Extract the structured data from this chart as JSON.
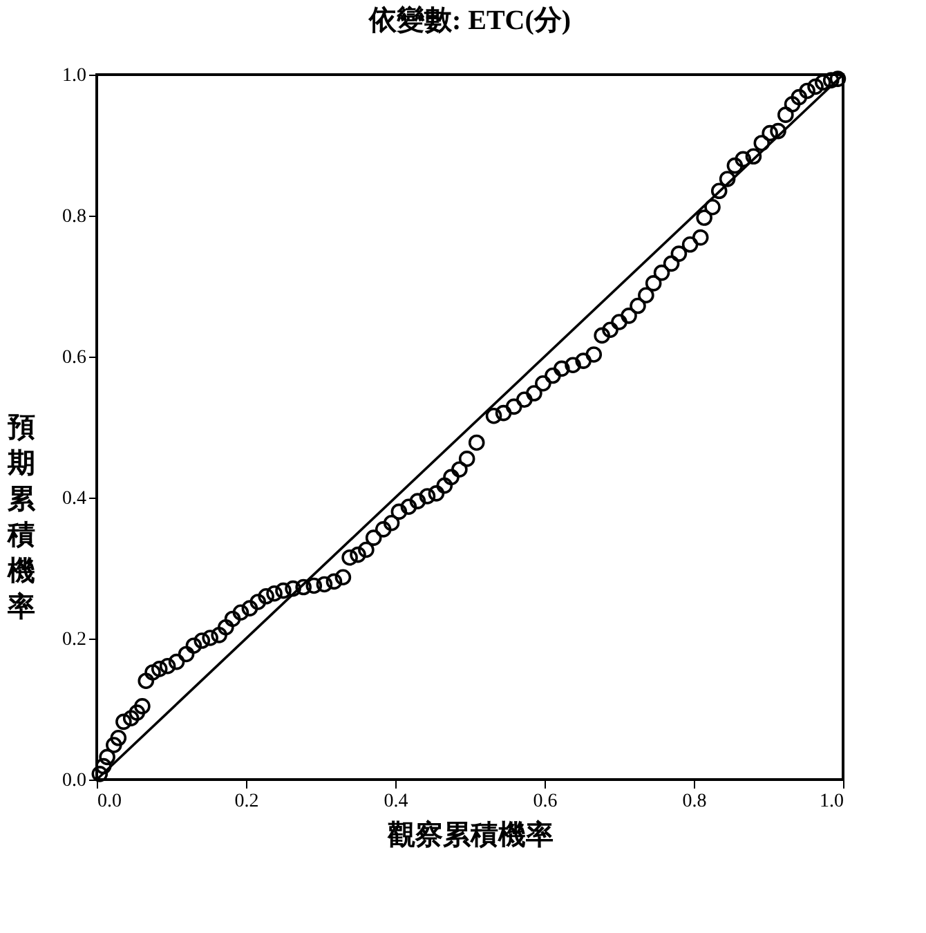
{
  "chart_data": {
    "type": "scatter",
    "title": "依變數: ETC(分)",
    "xlabel": "觀察累積機率",
    "ylabel": "預期累積機率",
    "marker": "circle",
    "xlim": [
      0,
      1
    ],
    "ylim": [
      0,
      1
    ],
    "xticks": [
      {
        "value": 0,
        "label": "0.0"
      },
      {
        "value": 0.2,
        "label": "0.2"
      },
      {
        "value": 0.4,
        "label": "0.4"
      },
      {
        "value": 0.6,
        "label": "0.6"
      },
      {
        "value": 0.8,
        "label": "0.8"
      },
      {
        "value": 1,
        "label": "1.0"
      }
    ],
    "yticks": [
      {
        "value": 0,
        "label": "0.0"
      },
      {
        "value": 0.2,
        "label": "0.2"
      },
      {
        "value": 0.4,
        "label": "0.4"
      },
      {
        "value": 0.6,
        "label": "0.6"
      },
      {
        "value": 0.8,
        "label": "0.8"
      },
      {
        "value": 1,
        "label": "1.0"
      }
    ],
    "series": [
      {
        "color": "#000000",
        "x": [
          0.004,
          0.009,
          0.014,
          0.023,
          0.029,
          0.036,
          0.046,
          0.054,
          0.061,
          0.066,
          0.075,
          0.084,
          0.095,
          0.107,
          0.12,
          0.13,
          0.141,
          0.152,
          0.164,
          0.173,
          0.182,
          0.193,
          0.205,
          0.216,
          0.227,
          0.238,
          0.25,
          0.263,
          0.277,
          0.291,
          0.305,
          0.318,
          0.33,
          0.339,
          0.35,
          0.361,
          0.371,
          0.384,
          0.395,
          0.405,
          0.418,
          0.43,
          0.443,
          0.455,
          0.466,
          0.475,
          0.486,
          0.496,
          0.509,
          0.532,
          0.545,
          0.559,
          0.573,
          0.586,
          0.598,
          0.611,
          0.623,
          0.638,
          0.652,
          0.666,
          0.677,
          0.688,
          0.7,
          0.713,
          0.725,
          0.736,
          0.746,
          0.757,
          0.77,
          0.78,
          0.795,
          0.809,
          0.814,
          0.825,
          0.834,
          0.845,
          0.855,
          0.866,
          0.88,
          0.891,
          0.902,
          0.913,
          0.923,
          0.932,
          0.941,
          0.952,
          0.963,
          0.973,
          0.984,
          0.993
        ],
        "values": [
          0.008,
          0.019,
          0.032,
          0.049,
          0.059,
          0.082,
          0.087,
          0.095,
          0.104,
          0.14,
          0.152,
          0.157,
          0.161,
          0.167,
          0.178,
          0.19,
          0.197,
          0.201,
          0.205,
          0.216,
          0.228,
          0.237,
          0.243,
          0.252,
          0.26,
          0.264,
          0.268,
          0.271,
          0.273,
          0.275,
          0.277,
          0.281,
          0.287,
          0.315,
          0.319,
          0.326,
          0.343,
          0.355,
          0.364,
          0.38,
          0.387,
          0.395,
          0.402,
          0.406,
          0.417,
          0.429,
          0.44,
          0.455,
          0.478,
          0.516,
          0.52,
          0.529,
          0.539,
          0.548,
          0.562,
          0.573,
          0.583,
          0.588,
          0.594,
          0.603,
          0.63,
          0.638,
          0.649,
          0.658,
          0.672,
          0.687,
          0.704,
          0.719,
          0.732,
          0.746,
          0.759,
          0.769,
          0.797,
          0.812,
          0.835,
          0.852,
          0.871,
          0.88,
          0.884,
          0.903,
          0.917,
          0.92,
          0.943,
          0.958,
          0.968,
          0.977,
          0.983,
          0.989,
          0.992,
          0.994
        ]
      },
      {
        "type": "line",
        "color": "#000000",
        "marker": "none",
        "line_style": "solid",
        "x": [
          0,
          1
        ],
        "values": [
          0,
          1
        ]
      }
    ]
  }
}
